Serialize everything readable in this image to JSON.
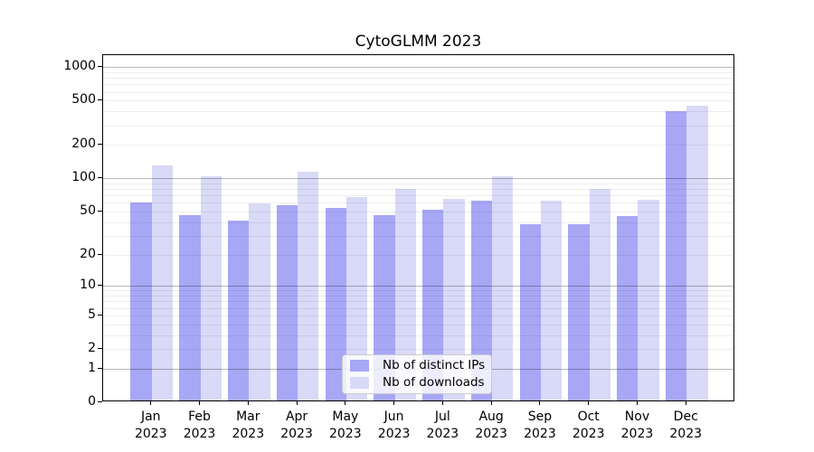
{
  "title": "CytoGLMM 2023",
  "chart_data": {
    "type": "bar",
    "title": "CytoGLMM 2023",
    "categories": [
      "Jan",
      "Feb",
      "Mar",
      "Apr",
      "May",
      "Jun",
      "Jul",
      "Aug",
      "Sep",
      "Oct",
      "Nov",
      "Dec"
    ],
    "year": "2023",
    "series": [
      {
        "name": "Nb of distinct IPs",
        "color": "#a7a7f6",
        "values": [
          58,
          45,
          40,
          55,
          52,
          45,
          50,
          61,
          37,
          37,
          44,
          386
        ]
      },
      {
        "name": "Nb of downloads",
        "color": "#d9d9f8",
        "values": [
          127,
          100,
          57,
          110,
          65,
          77,
          63,
          100,
          60,
          77,
          62,
          437
        ]
      }
    ],
    "yscale": "log1p",
    "yticks": [
      0,
      1,
      2,
      5,
      10,
      20,
      50,
      100,
      200,
      500,
      1000
    ],
    "ylim": [
      0,
      1280
    ],
    "grid": true,
    "legend_position": "lower center",
    "xlabel": "",
    "ylabel": ""
  },
  "colors": {
    "bar_distinct_ips": "#a7a7f6",
    "bar_downloads": "#d9d9f8",
    "grid_major": "#b8b8b8",
    "grid_minor": "#ececec",
    "frame": "#000000",
    "background": "#ffffff",
    "text": "#000000",
    "legend_border": "#cccccc"
  }
}
